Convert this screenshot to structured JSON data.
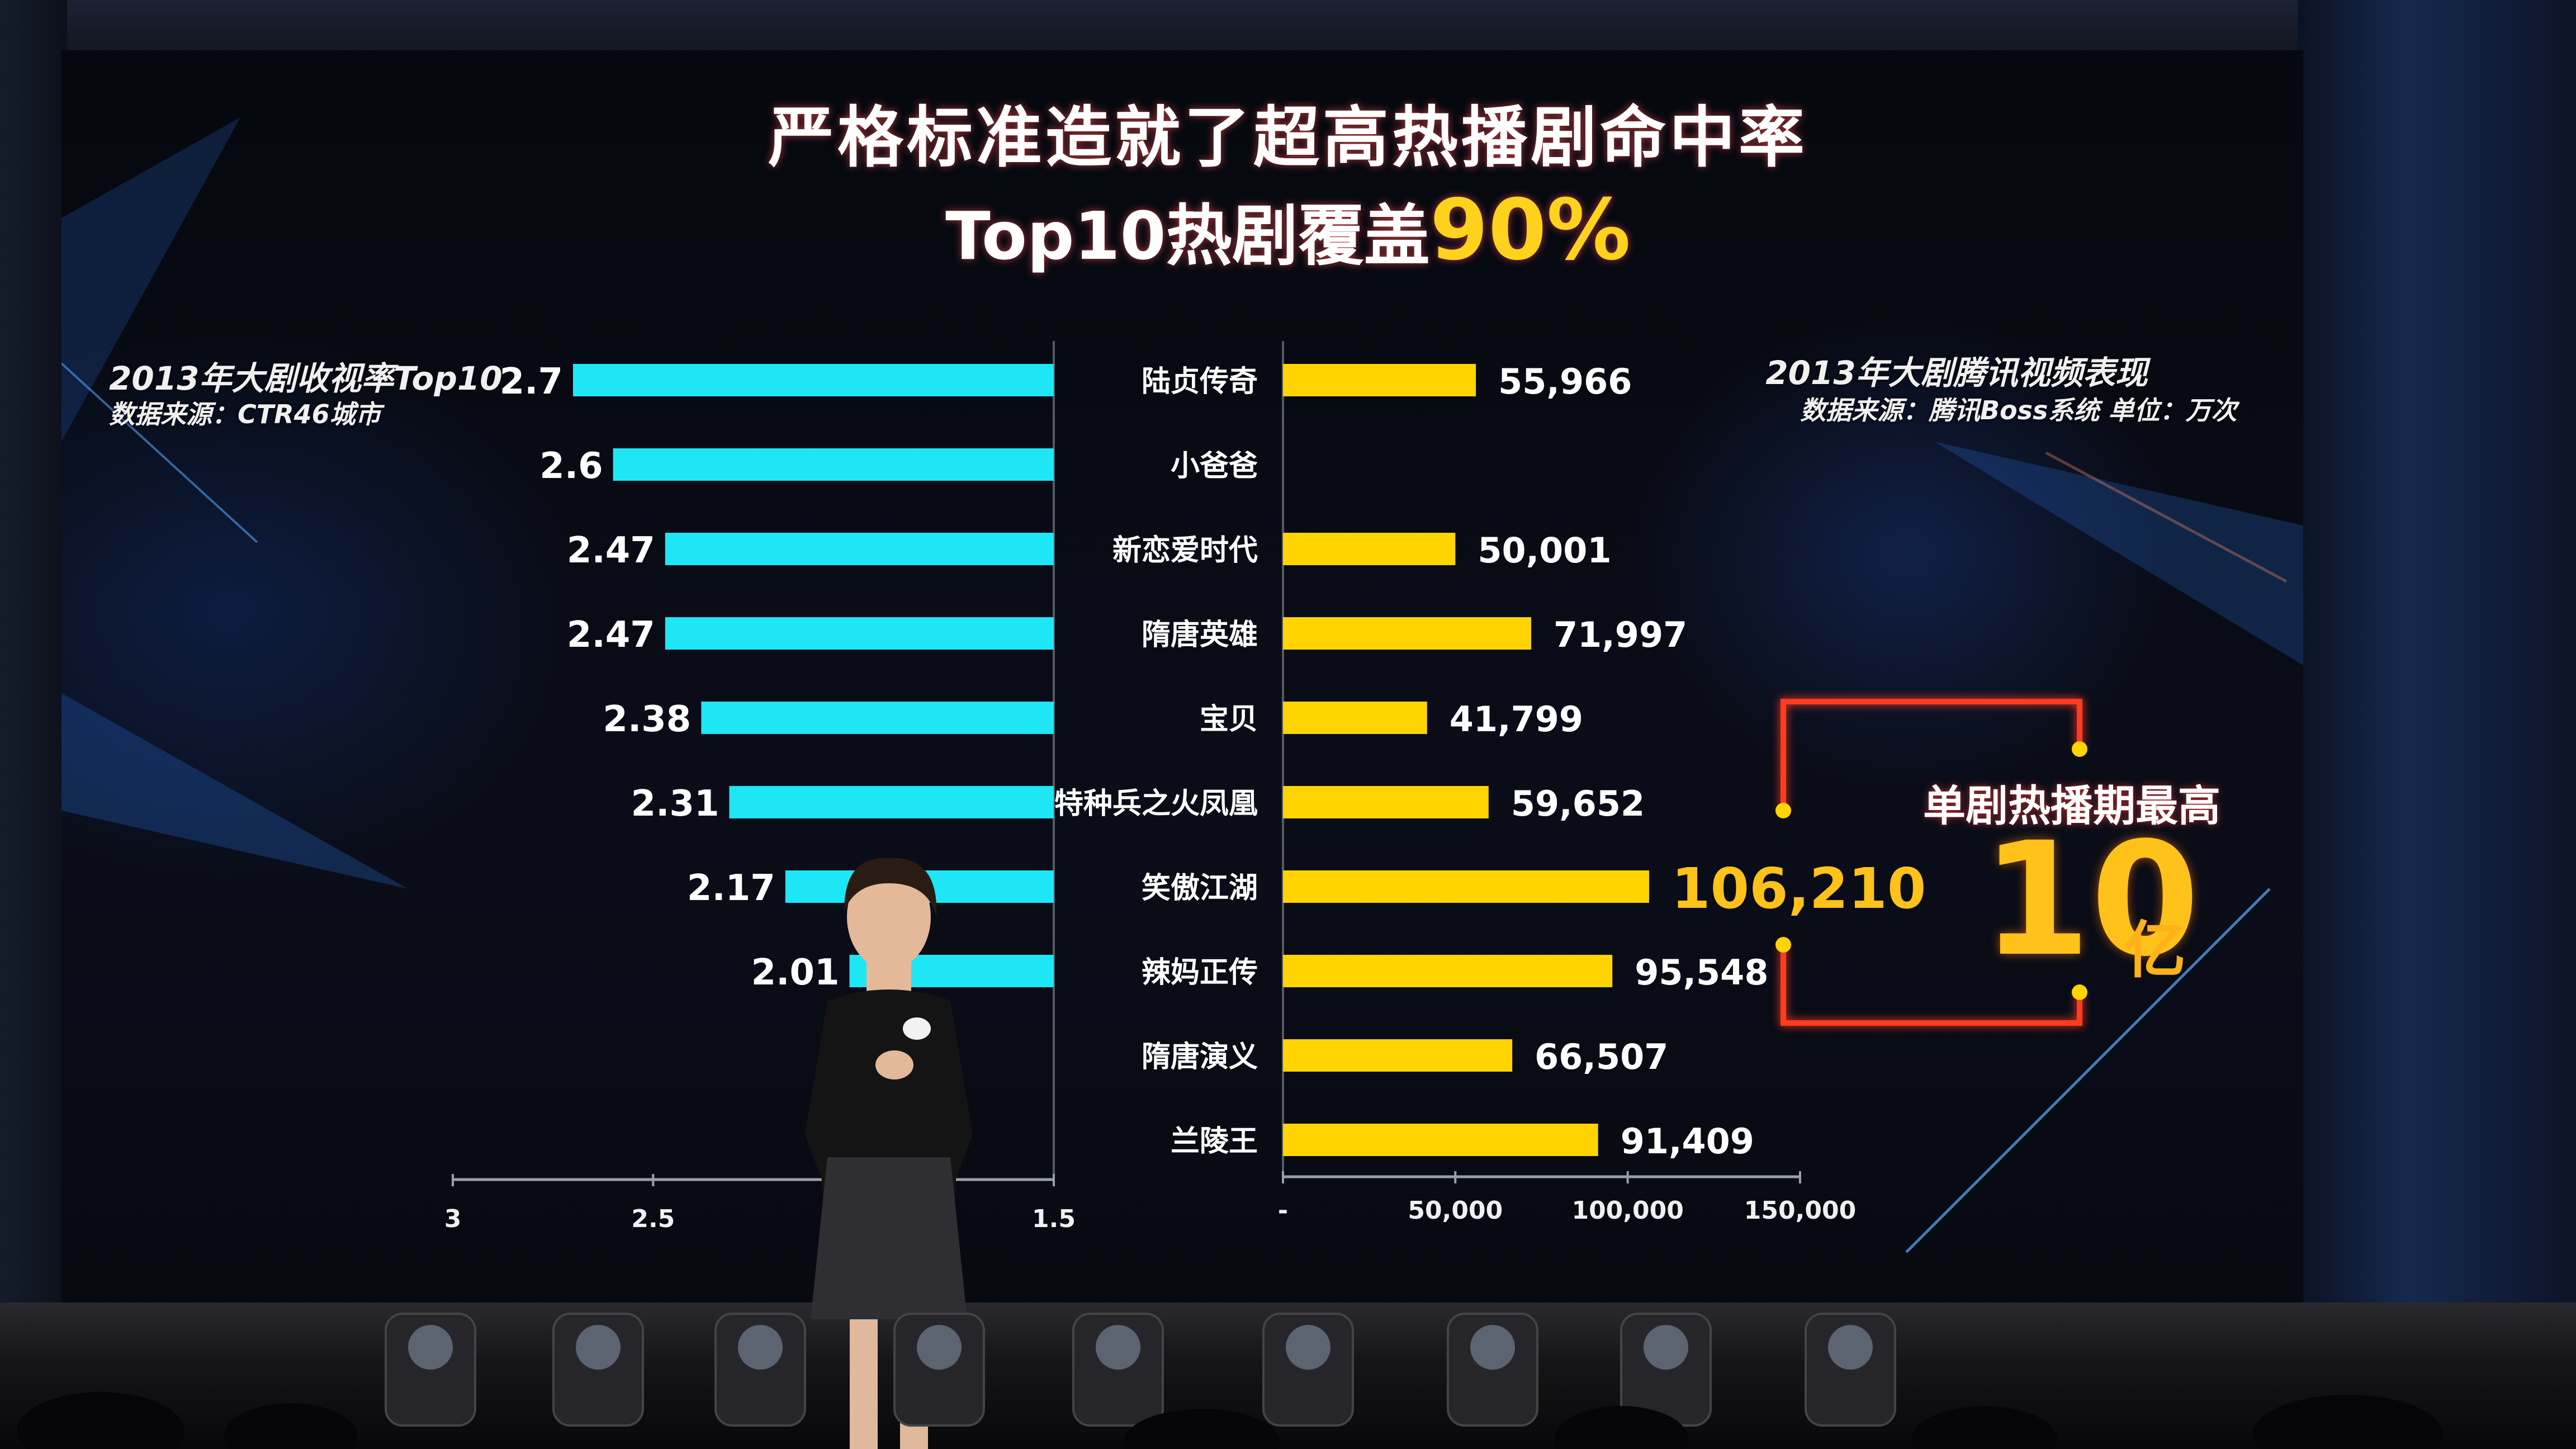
{
  "title": "严格标准造就了超高热播剧命中率",
  "subtitle": {
    "prefix": "Top10热剧覆盖",
    "highlight": "90%"
  },
  "left_panel": {
    "heading": "2013年大剧收视率Top10",
    "source": "数据来源：CTR46城市"
  },
  "right_panel": {
    "heading": "2013年大剧腾讯视频表现",
    "source": "数据来源：腾讯Boss系统  单位：万次"
  },
  "highlight": {
    "label": "单剧热播期最高",
    "value": "10",
    "unit": "亿"
  },
  "colors": {
    "ratings_bar": "#1ee6f5",
    "views_bar": "#ffd400",
    "highlight_value": "#ffc21a",
    "frame": "#ff3b1f"
  },
  "chart_data": [
    {
      "type": "bar",
      "orientation": "horizontal-reversed",
      "categories": [
        "陆贞传奇",
        "小爸爸",
        "新恋爱时代",
        "隋唐英雄",
        "宝贝",
        "特种兵之火凤凰",
        "笑傲江湖",
        "辣妈正传",
        "隋唐演义",
        "兰陵王"
      ],
      "values": [
        2.7,
        2.6,
        2.47,
        2.47,
        2.38,
        2.31,
        2.17,
        2.01,
        null,
        null
      ],
      "value_labels": [
        "2.7",
        "2.6",
        "2.47",
        "2.47",
        "2.38",
        "2.31",
        "2.17",
        "2.01",
        "",
        ""
      ],
      "xlim": [
        3,
        1.5
      ],
      "x_ticks": [
        "3",
        "2.5",
        "",
        "1.5"
      ],
      "title": "2013年大剧收视率Top10"
    },
    {
      "type": "bar",
      "orientation": "horizontal",
      "categories": [
        "陆贞传奇",
        "小爸爸",
        "新恋爱时代",
        "隋唐英雄",
        "宝贝",
        "特种兵之火凤凰",
        "笑傲江湖",
        "辣妈正传",
        "隋唐演义",
        "兰陵王"
      ],
      "values": [
        55966,
        null,
        50001,
        71997,
        41799,
        59652,
        106210,
        95548,
        66507,
        91409
      ],
      "value_labels": [
        "55,966",
        "",
        "50,001",
        "71,997",
        "41,799",
        "59,652",
        "106,210",
        "95,548",
        "66,507",
        "91,409"
      ],
      "xlim": [
        0,
        150000
      ],
      "x_ticks": [
        "-",
        "50,000",
        "100,000",
        "150,000"
      ],
      "title": "2013年大剧腾讯视频表现",
      "highlighted_index": 6
    }
  ]
}
